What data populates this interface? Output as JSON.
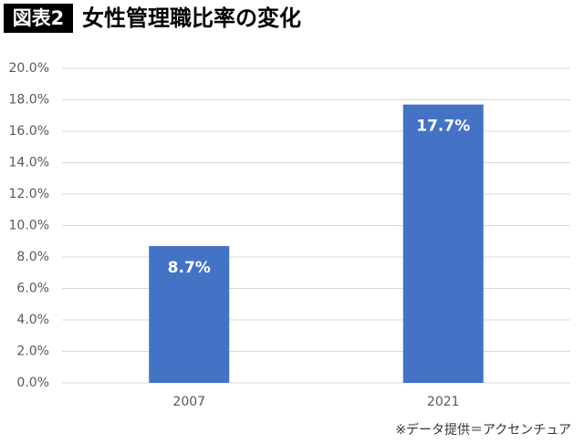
{
  "chart_data": {
    "type": "bar",
    "figure_label": "図表2",
    "title": "女性管理職比率の変化",
    "categories": [
      "2007",
      "2021"
    ],
    "values": [
      8.7,
      17.7
    ],
    "value_labels": [
      "8.7%",
      "17.7%"
    ],
    "color": "#4472c4",
    "ylim": [
      0,
      20
    ],
    "yticks": [
      {
        "value": 0,
        "label": "0.0%"
      },
      {
        "value": 2,
        "label": "2.0%"
      },
      {
        "value": 4,
        "label": "4.0%"
      },
      {
        "value": 6,
        "label": "6.0%"
      },
      {
        "value": 8,
        "label": "8.0%"
      },
      {
        "value": 10,
        "label": "10.0%"
      },
      {
        "value": 12,
        "label": "12.0%"
      },
      {
        "value": 14,
        "label": "14.0%"
      },
      {
        "value": 16,
        "label": "16.0%"
      },
      {
        "value": 18,
        "label": "18.0%"
      },
      {
        "value": 20,
        "label": "20.0%"
      }
    ],
    "grid": true,
    "source": "※データ提供＝アクセンチュア"
  }
}
